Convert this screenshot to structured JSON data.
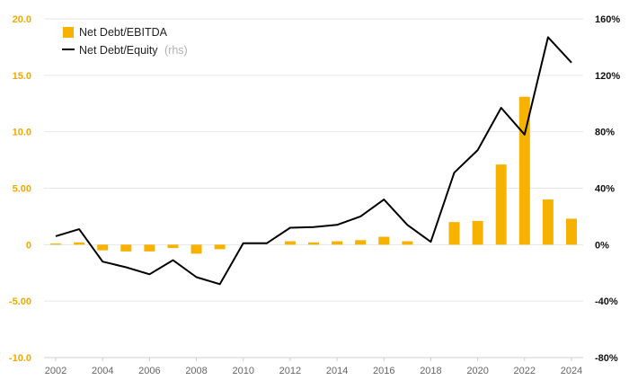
{
  "chart_data": {
    "type": "bar+line",
    "title": "",
    "x": [
      2002,
      2003,
      2004,
      2005,
      2006,
      2007,
      2008,
      2009,
      2010,
      2011,
      2012,
      2013,
      2014,
      2015,
      2016,
      2017,
      2018,
      2019,
      2020,
      2021,
      2022,
      2023,
      2024
    ],
    "x_tick_labels": [
      "2002",
      "2004",
      "2006",
      "2008",
      "2010",
      "2012",
      "2014",
      "2016",
      "2018",
      "2020",
      "2022",
      "2024"
    ],
    "series": [
      {
        "name": "Net Debt/EBITDA",
        "kind": "bar",
        "axis": "left",
        "color": "#f7b200",
        "values": [
          0.1,
          0.2,
          -0.5,
          -0.6,
          -0.6,
          -0.3,
          -0.8,
          -0.4,
          0,
          0,
          0.3,
          0.2,
          0.3,
          0.4,
          0.7,
          0.3,
          0,
          2.0,
          2.1,
          7.1,
          13.1,
          4.0,
          2.3
        ]
      },
      {
        "name": "Net Debt/Equity",
        "name_note": "(rhs)",
        "kind": "line",
        "axis": "right",
        "color": "#000000",
        "values": [
          6,
          11,
          -12,
          -16,
          -21,
          -11,
          -23,
          -28,
          1,
          1,
          12,
          12.5,
          14,
          20,
          32,
          14,
          2,
          51,
          67,
          97,
          78,
          147,
          129
        ]
      }
    ],
    "y_left": {
      "ylim": [
        -10,
        20
      ],
      "ticks": [
        -10,
        -5,
        0,
        5,
        10,
        15,
        20
      ],
      "tick_labels": [
        "-10.0",
        "-5.00",
        "0",
        "5.00",
        "10.0",
        "15.0",
        "20.0"
      ],
      "color": "#f2a900"
    },
    "y_right": {
      "ylim": [
        -80,
        160
      ],
      "ticks": [
        -80,
        -40,
        0,
        40,
        80,
        120,
        160
      ],
      "tick_labels": [
        "-80%",
        "-40%",
        "0%",
        "40%",
        "80%",
        "120%",
        "160%"
      ],
      "color": "#111111"
    },
    "grid": true,
    "legend": "top-left"
  }
}
